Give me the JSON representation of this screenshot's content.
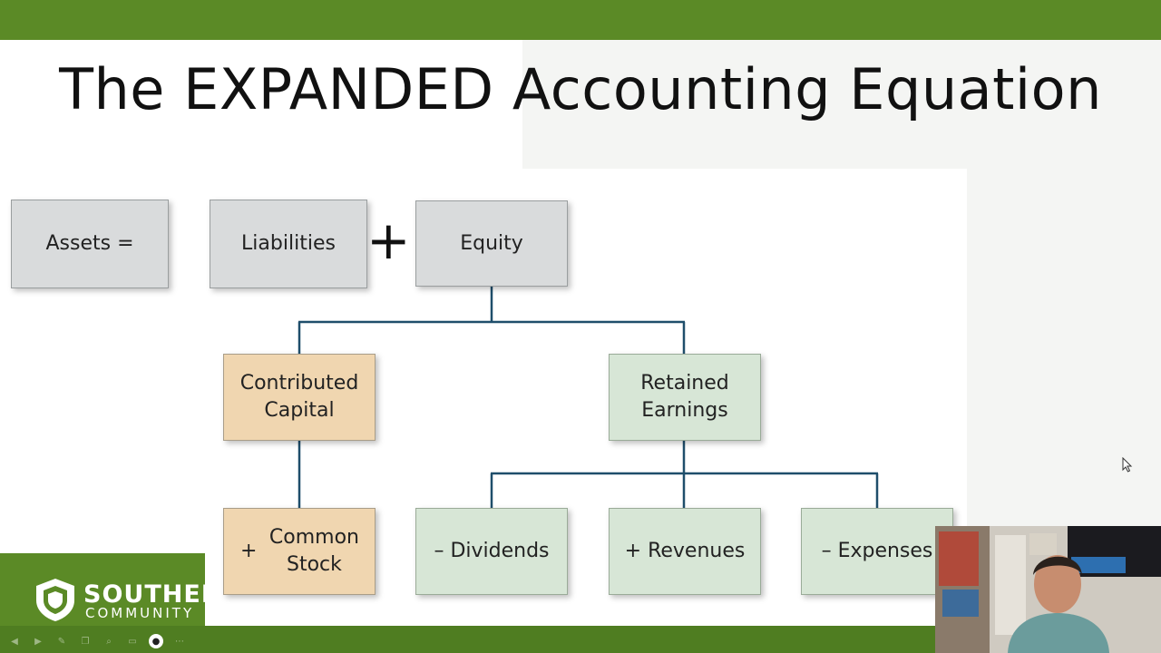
{
  "slide": {
    "title": "The EXPANDED Accounting Equation"
  },
  "equation": {
    "assets": "Assets =",
    "liabilities": "Liabilities",
    "plus": "+",
    "equity": "Equity"
  },
  "equity_branches": {
    "contributed_capital": "Contributed Capital",
    "retained_earnings": "Retained Earnings"
  },
  "contributed_children": {
    "common_stock_sign": "+",
    "common_stock": "Common Stock"
  },
  "retained_children": {
    "dividends": "– Dividends",
    "revenues": "+ Revenues",
    "expenses": "– Expenses"
  },
  "logo": {
    "line1": "SOUTHERN",
    "line2": "COMMUNITY"
  },
  "colors": {
    "brand_green": "#5b8a26",
    "connector": "#1f4e6b",
    "gray_box": "#d9dbdc",
    "tan_box": "#f0d6b0",
    "green_box": "#d7e6d6"
  },
  "toolbar": {
    "icons": [
      "prev-icon",
      "next-icon",
      "pen-icon",
      "copy-icon",
      "zoom-icon",
      "subtitle-icon",
      "camera-icon",
      "more-icon"
    ]
  }
}
